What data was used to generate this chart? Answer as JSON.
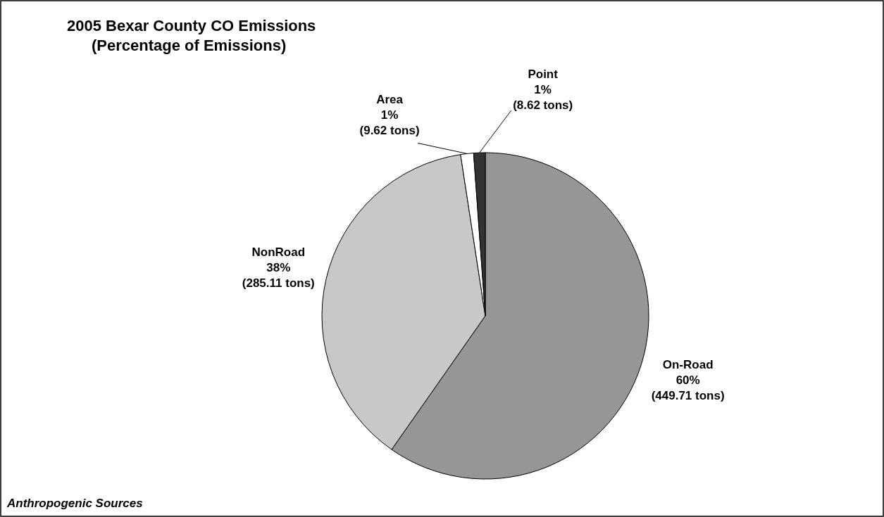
{
  "chart_data": {
    "type": "pie",
    "title": "2005 Bexar County CO Emissions\n(Percentage of Emissions)",
    "categories": [
      "On-Road",
      "NonRoad",
      "Area",
      "Point"
    ],
    "values": [
      449.71,
      285.11,
      9.62,
      8.62
    ],
    "colors": [
      "#969696",
      "#c8c8c8",
      "#ffffff",
      "#333333"
    ],
    "value_labels": [
      "60%\n(449.71 tons)",
      "38%\n(285.11 tons)",
      "1%\n(9.62 tons)",
      "1%\n(8.62 tons)"
    ],
    "annotations": [
      "Anthropogenic Sources"
    ]
  }
}
